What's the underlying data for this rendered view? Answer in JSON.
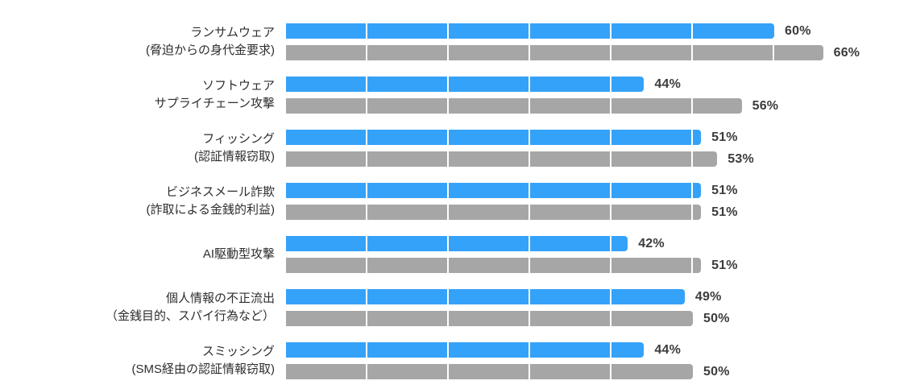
{
  "chart_data": {
    "type": "bar",
    "orientation": "horizontal",
    "xlim": [
      0,
      100
    ],
    "unit_suffix": "%",
    "segment_interval": 10,
    "grid": "white divider lines inside bars at every 10%",
    "legend": "none",
    "categories": [
      [
        "ランサムウェア",
        "(脅迫からの身代金要求)"
      ],
      [
        "ソフトウェア",
        "サプライチェーン攻撃"
      ],
      [
        "フィッシング",
        "(認証情報窃取)"
      ],
      [
        "ビジネスメール詐欺",
        "(詐取による金銭的利益)"
      ],
      [
        "AI駆動型攻撃"
      ],
      [
        "個人情報の不正流出",
        "（金銭目的、スパイ行為など）"
      ],
      [
        "スミッシング",
        "(SMS経由の認証情報窃取)"
      ]
    ],
    "series": [
      {
        "name": "blue",
        "color": "#35A2F9",
        "values": [
          60,
          44,
          51,
          51,
          42,
          49,
          44
        ]
      },
      {
        "name": "gray",
        "color": "#A6A6A6",
        "values": [
          66,
          56,
          53,
          51,
          51,
          50,
          50
        ]
      }
    ]
  },
  "styles": {
    "background": "#FFFFFF",
    "bar_blue": "#35A2F9",
    "bar_gray": "#A6A6A6",
    "divider": "#FFFFFF",
    "label_text": "#2E2E2E",
    "value_text": "#3C3C3C"
  }
}
